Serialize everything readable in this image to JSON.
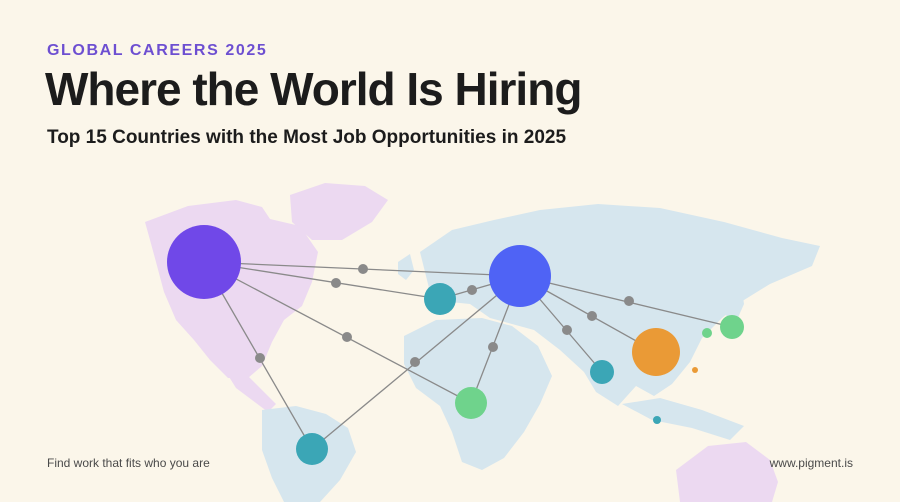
{
  "header": {
    "eyebrow": "GLOBAL CAREERS 2025",
    "title": "Where the World Is Hiring",
    "subtitle": "Top 15 Countries with the Most Job Opportunities in 2025"
  },
  "footer": {
    "tagline": "Find work that fits who you are",
    "website": "www.pigment.is"
  },
  "colors": {
    "background": "#fbf6ea",
    "eyebrow": "#6d4fd1",
    "land_americas": "#ecd9f1",
    "land_rest": "#d6e6ee",
    "connector": "#8a8a8a",
    "hub_na": "#7048e8",
    "hub_eu": "#4f63f5",
    "teal": "#3ba6b6",
    "green": "#6fd38c",
    "orange": "#ea9a36"
  }
}
